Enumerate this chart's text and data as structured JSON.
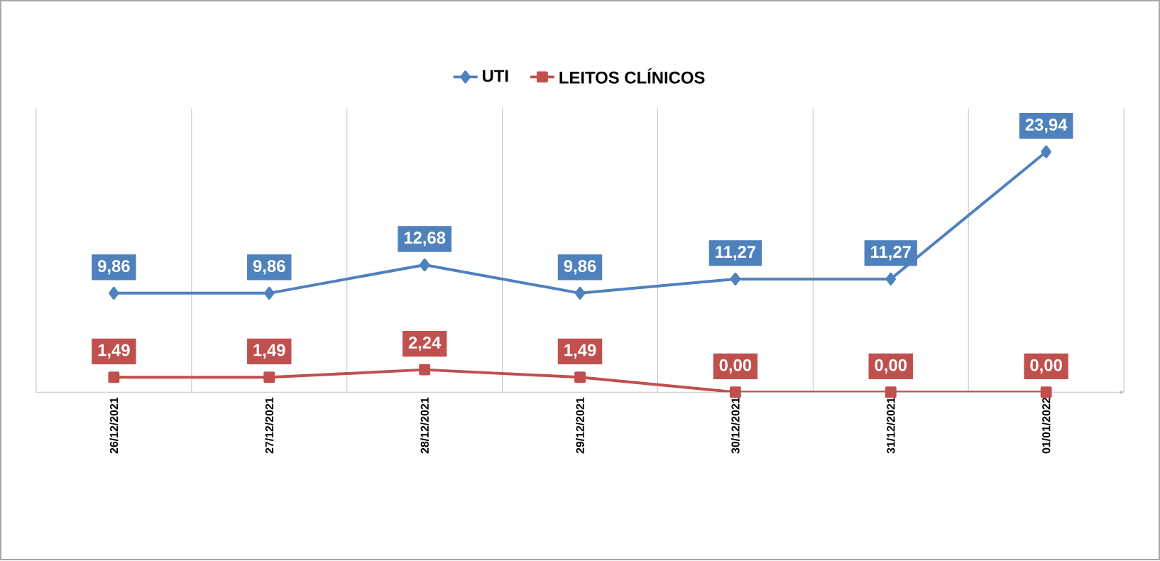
{
  "chart_data": {
    "type": "line",
    "categories": [
      "26/12/2021",
      "27/12/2021",
      "28/12/2021",
      "29/12/2021",
      "30/12/2021",
      "31/12/2021",
      "01/01/2022"
    ],
    "series": [
      {
        "name": "UTI",
        "color": "#4f81bd",
        "marker": "diamond",
        "values": [
          9.86,
          9.86,
          12.68,
          9.86,
          11.27,
          11.27,
          23.94
        ],
        "value_labels": [
          "9,86",
          "9,86",
          "12,68",
          "9,86",
          "11,27",
          "11,27",
          "23,94"
        ]
      },
      {
        "name": "LEITOS CLÍNICOS",
        "color": "#c0504d",
        "marker": "square",
        "values": [
          1.49,
          1.49,
          2.24,
          1.49,
          0,
          0,
          0
        ],
        "value_labels": [
          "1,49",
          "1,49",
          "2,24",
          "1,49",
          "0,00",
          "0,00",
          "0,00"
        ]
      }
    ],
    "grid": "x",
    "legend": "top"
  }
}
